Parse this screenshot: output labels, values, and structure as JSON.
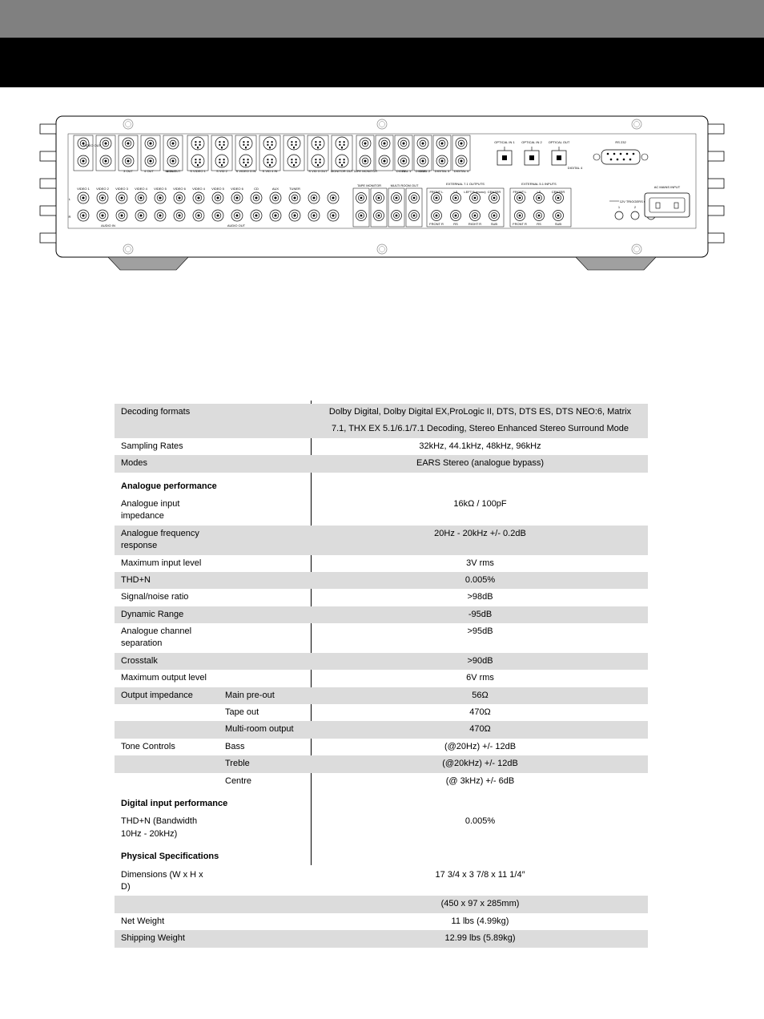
{
  "diagram": {
    "panel_border_color": "#000000",
    "panel_fill": "#ffffff",
    "screw_fill": "#ffffff",
    "screw_stroke": "#888888",
    "label_font_size": 4,
    "top_labels": [
      "VIDEO OUT",
      "4 OUT",
      "6 OUT",
      "S VIDEO 1",
      "S VID 2",
      "S VIDEO 3 IN",
      "S VID 4 IN",
      "MONITOR OUT"
    ],
    "mid_labels": [
      "3 OUT",
      "MON OUT",
      "S VIDEO 2 IN",
      "S VIDEO 4 IN",
      "S VIDEO 6 IN",
      "S VID 3 OUT",
      "MONITOR OUT"
    ],
    "audio_row_labels": [
      "VIDEO 1",
      "VIDEO 2",
      "VIDEO 3",
      "VIDEO 4",
      "VIDEO 5",
      "VIDEO 6",
      "VIDEO 4",
      "VIDEO 5",
      "VIDEO 6",
      "CD",
      "AUX",
      "TUNER"
    ],
    "optical_labels": [
      "OPTICAL IN 1",
      "OPTICAL IN 2",
      "OPTICAL OUT"
    ],
    "rs232_label": "RS 232",
    "digital_labels": [
      "DIGITAL 1",
      "DIGITAL 2",
      "DIGITAL 3",
      "DIGITAL 4"
    ],
    "ext71_header": "EXTERNAL 7.1 OUTPUTS",
    "ext51_header": "EXTERNAL 5.1 INPUTS",
    "ext_sub_labels_top": [
      "FRONT L",
      "LS",
      "LEFT B (mono)",
      "CENTER",
      "FRONT L",
      "LS",
      "CENTER"
    ],
    "ext_sub_labels_bot": [
      "FRONT R",
      "RS",
      "RIGHT R",
      "SUB",
      "FRONT R",
      "RS",
      "SUB"
    ],
    "tape_label": "TAPE MONITOR",
    "multi_label": "MULTI ROOM OUT",
    "trigger_label": "12V TRIGGERS OUT",
    "trigger_nums": [
      "1",
      "2",
      "3"
    ],
    "ac_label": "AC MAINS INPUT",
    "lr_labels": [
      "L",
      "R"
    ],
    "audio_in_label": "AUDIO IN",
    "audio_out_label": "AUDIO OUT",
    "in_label": "IN",
    "out_label": "OUT"
  },
  "specs": {
    "rows": [
      {
        "shade": true,
        "label": "Decoding formats",
        "sub": "",
        "val": "Dolby Digital, Dolby Digital EX,ProLogic II, DTS, DTS ES, DTS NEO:6, Matrix"
      },
      {
        "shade": true,
        "label": "",
        "sub": "",
        "val": "7.1, THX EX 5.1/6.1/7.1 Decoding, Stereo Enhanced Stereo Surround Mode"
      },
      {
        "shade": false,
        "label": "Sampling Rates",
        "sub": "",
        "val": "32kHz, 44.1kHz, 48kHz, 96kHz"
      },
      {
        "shade": true,
        "label": "Modes",
        "sub": "",
        "val": "EARS Stereo (analogue bypass)"
      },
      {
        "section": true,
        "label": "Analogue performance"
      },
      {
        "shade": false,
        "label": "Analogue input impedance",
        "sub": "",
        "val": "16kΩ / 100pF"
      },
      {
        "shade": true,
        "label": "Analogue frequency response",
        "sub": "",
        "val": "20Hz - 20kHz +/- 0.2dB"
      },
      {
        "shade": false,
        "label": "Maximum input level",
        "sub": "",
        "val": "3V rms"
      },
      {
        "shade": true,
        "label": "THD+N",
        "sub": "",
        "val": "0.005%"
      },
      {
        "shade": false,
        "label": "Signal/noise ratio",
        "sub": "",
        "val": ">98dB"
      },
      {
        "shade": true,
        "label": "Dynamic Range",
        "sub": "",
        "val": "-95dB"
      },
      {
        "shade": false,
        "label": "Analogue channel separation",
        "sub": "",
        "val": ">95dB"
      },
      {
        "shade": true,
        "label": "Crosstalk",
        "sub": "",
        "val": ">90dB"
      },
      {
        "shade": false,
        "label": "Maximum output level",
        "sub": "",
        "val": "6V rms"
      },
      {
        "shade": true,
        "label": "Output impedance",
        "sub": "Main pre-out",
        "val": "56Ω"
      },
      {
        "shade": false,
        "label": "",
        "sub": "Tape out",
        "val": "470Ω"
      },
      {
        "shade": true,
        "label": "",
        "sub": "Multi-room output",
        "val": "470Ω"
      },
      {
        "shade": false,
        "label": "Tone Controls",
        "sub": "Bass",
        "val": "(@20Hz) +/- 12dB"
      },
      {
        "shade": true,
        "label": "",
        "sub": "Treble",
        "val": "(@20kHz) +/- 12dB"
      },
      {
        "shade": false,
        "label": "",
        "sub": "Centre",
        "val": "(@ 3kHz) +/- 6dB"
      },
      {
        "section": true,
        "label": "Digital input performance"
      },
      {
        "shade": false,
        "label": "THD+N (Bandwidth 10Hz - 20kHz)",
        "sub": "",
        "val": "0.005%"
      },
      {
        "section": true,
        "label": "Physical Specifications"
      },
      {
        "shade": false,
        "label": "Dimensions (W x H x D)",
        "sub": "",
        "val": "17 3/4 x 3 7/8 x 11 1/4″"
      },
      {
        "shade": true,
        "label": "",
        "sub": "",
        "val": "(450 x 97 x 285mm)"
      },
      {
        "shade": false,
        "label": "Net Weight",
        "sub": "",
        "val": "11 lbs (4.99kg)"
      },
      {
        "shade": true,
        "label": "Shipping Weight",
        "sub": "",
        "val": "12.99 lbs (5.89kg)"
      }
    ]
  }
}
